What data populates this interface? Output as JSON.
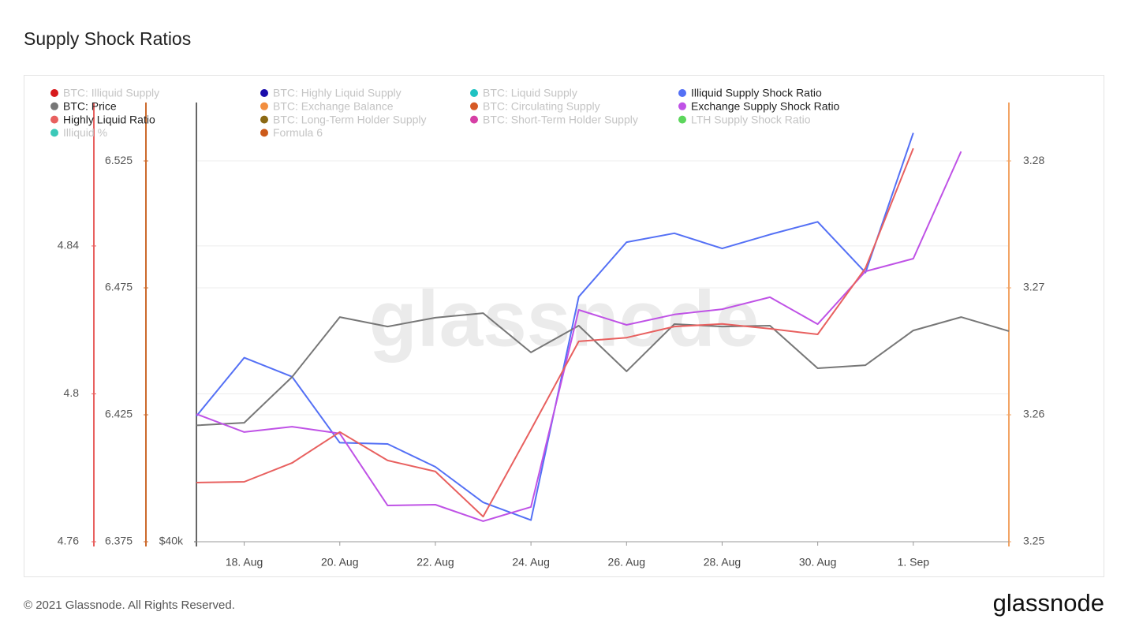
{
  "chart_data": {
    "type": "line",
    "title": "Supply Shock Ratios",
    "watermark": "glassnode",
    "copyright": "© 2021 Glassnode. All Rights Reserved.",
    "logo": "glassnode",
    "grid": true,
    "x": [
      "Aug 17",
      "Aug 18",
      "Aug 19",
      "Aug 20",
      "Aug 21",
      "Aug 22",
      "Aug 23",
      "Aug 24",
      "Aug 25",
      "Aug 26",
      "Aug 27",
      "Aug 28",
      "Aug 29",
      "Aug 30",
      "Aug 31",
      "Sep 1",
      "Sep 2",
      "Sep 3"
    ],
    "xlim": [
      "Aug 17",
      "Sep 3"
    ],
    "xticks": [
      {
        "value": "Aug 18",
        "label": "18. Aug"
      },
      {
        "value": "Aug 20",
        "label": "20. Aug"
      },
      {
        "value": "Aug 22",
        "label": "22. Aug"
      },
      {
        "value": "Aug 24",
        "label": "24. Aug"
      },
      {
        "value": "Aug 26",
        "label": "26. Aug"
      },
      {
        "value": "Aug 28",
        "label": "28. Aug"
      },
      {
        "value": "Aug 30",
        "label": "30. Aug"
      },
      {
        "value": "Sep 1",
        "label": "1. Sep"
      }
    ],
    "ylim": [
      4.76,
      4.8788
    ],
    "yticks": [
      4.76,
      4.8,
      4.84
    ],
    "y_color": "#e8605f",
    "y3lim": [
      6.375,
      6.548
    ],
    "y3ticks": [
      6.375,
      6.425,
      6.475,
      6.525
    ],
    "y3_color": "#cc6a2c",
    "y4lim": [
      40000,
      60000
    ],
    "y4ticks": [
      {
        "value": 40000,
        "label": "$40k"
      }
    ],
    "y4_color": "#666666",
    "y2lim": [
      3.25,
      3.2846
    ],
    "y2ticks": [
      3.25,
      3.26,
      3.27,
      3.28
    ],
    "y2_color": "#f2a465",
    "series": [
      {
        "name": "BTC: Illiquid Supply",
        "color": "#d7191c",
        "hidden": true
      },
      {
        "name": "BTC: Highly Liquid Supply",
        "color": "#1a0dab",
        "hidden": true
      },
      {
        "name": "BTC: Liquid Supply",
        "color": "#1fc2c2",
        "hidden": true
      },
      {
        "name": "Illiquid Supply Shock Ratio",
        "color": "#5470f5",
        "axis": "y2",
        "values": [
          3.2599,
          3.2645,
          3.263,
          3.2578,
          3.2577,
          3.2559,
          3.2531,
          3.2517,
          3.2693,
          3.2736,
          3.2743,
          3.2731,
          3.2742,
          3.2752,
          3.2712,
          3.2822,
          null,
          null
        ]
      },
      {
        "name": "BTC: Price",
        "color": "#777777",
        "axis": "y4",
        "values": [
          45300,
          45420,
          47500,
          50230,
          49800,
          50200,
          50410,
          48620,
          49840,
          47760,
          49910,
          49800,
          49840,
          47900,
          48040,
          49620,
          50230,
          49590
        ]
      },
      {
        "name": "BTC: Exchange Balance",
        "color": "#f28e3f",
        "hidden": true
      },
      {
        "name": "BTC: Circulating Supply",
        "color": "#d65a25",
        "hidden": true
      },
      {
        "name": "Exchange Supply Shock Ratio",
        "color": "#bf52e6",
        "axis": "y3",
        "values": [
          6.4253,
          6.4182,
          6.4203,
          6.4176,
          6.3893,
          6.3896,
          6.3831,
          6.3887,
          6.4663,
          6.4604,
          6.4645,
          6.4666,
          6.4713,
          6.4607,
          6.4815,
          6.4865,
          6.5287,
          null
        ]
      },
      {
        "name": "Highly Liquid Ratio",
        "color": "#e8605f",
        "axis": "y",
        "values": [
          4.776,
          4.7762,
          4.7813,
          4.7897,
          4.782,
          4.779,
          4.7668,
          4.7903,
          4.8142,
          4.8152,
          4.8182,
          4.8189,
          4.8176,
          4.8161,
          4.834,
          4.8664,
          null,
          null
        ]
      },
      {
        "name": "BTC: Long-Term Holder Supply",
        "color": "#8b6914",
        "hidden": true
      },
      {
        "name": "BTC: Short-Term Holder Supply",
        "color": "#d63fa5",
        "hidden": true
      },
      {
        "name": "LTH Supply Shock Ratio",
        "color": "#5cd65c",
        "hidden": true
      },
      {
        "name": "Illiquid %",
        "color": "#3cc9b9",
        "hidden": true
      },
      {
        "name": "Formula 6",
        "color": "#cc5a1a",
        "hidden": true
      }
    ]
  }
}
